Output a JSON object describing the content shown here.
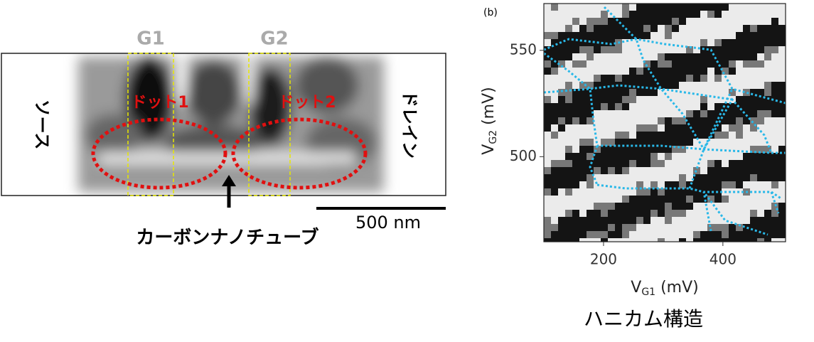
{
  "image_panel": {
    "gate_labels": [
      "G1",
      "G2"
    ],
    "dot_labels": [
      "ドット1",
      "ドット2"
    ],
    "source": "ソース",
    "drain": "ドレイン",
    "scale_bar": "500 nm",
    "nanotube": "カーボンナノチューブ"
  },
  "stability_diagram": {
    "panel_label": "(b)",
    "x_label": {
      "main": "V",
      "sub": "G1",
      "unit": " (mV)"
    },
    "y_label": {
      "main": "V",
      "sub": "G2",
      "unit": " (mV)"
    },
    "xlim": [
      100,
      505
    ],
    "xticks": [
      200,
      400
    ],
    "ylim": [
      460,
      572
    ],
    "yticks": [
      500,
      550
    ],
    "caption": "ハニカム構造"
  }
}
